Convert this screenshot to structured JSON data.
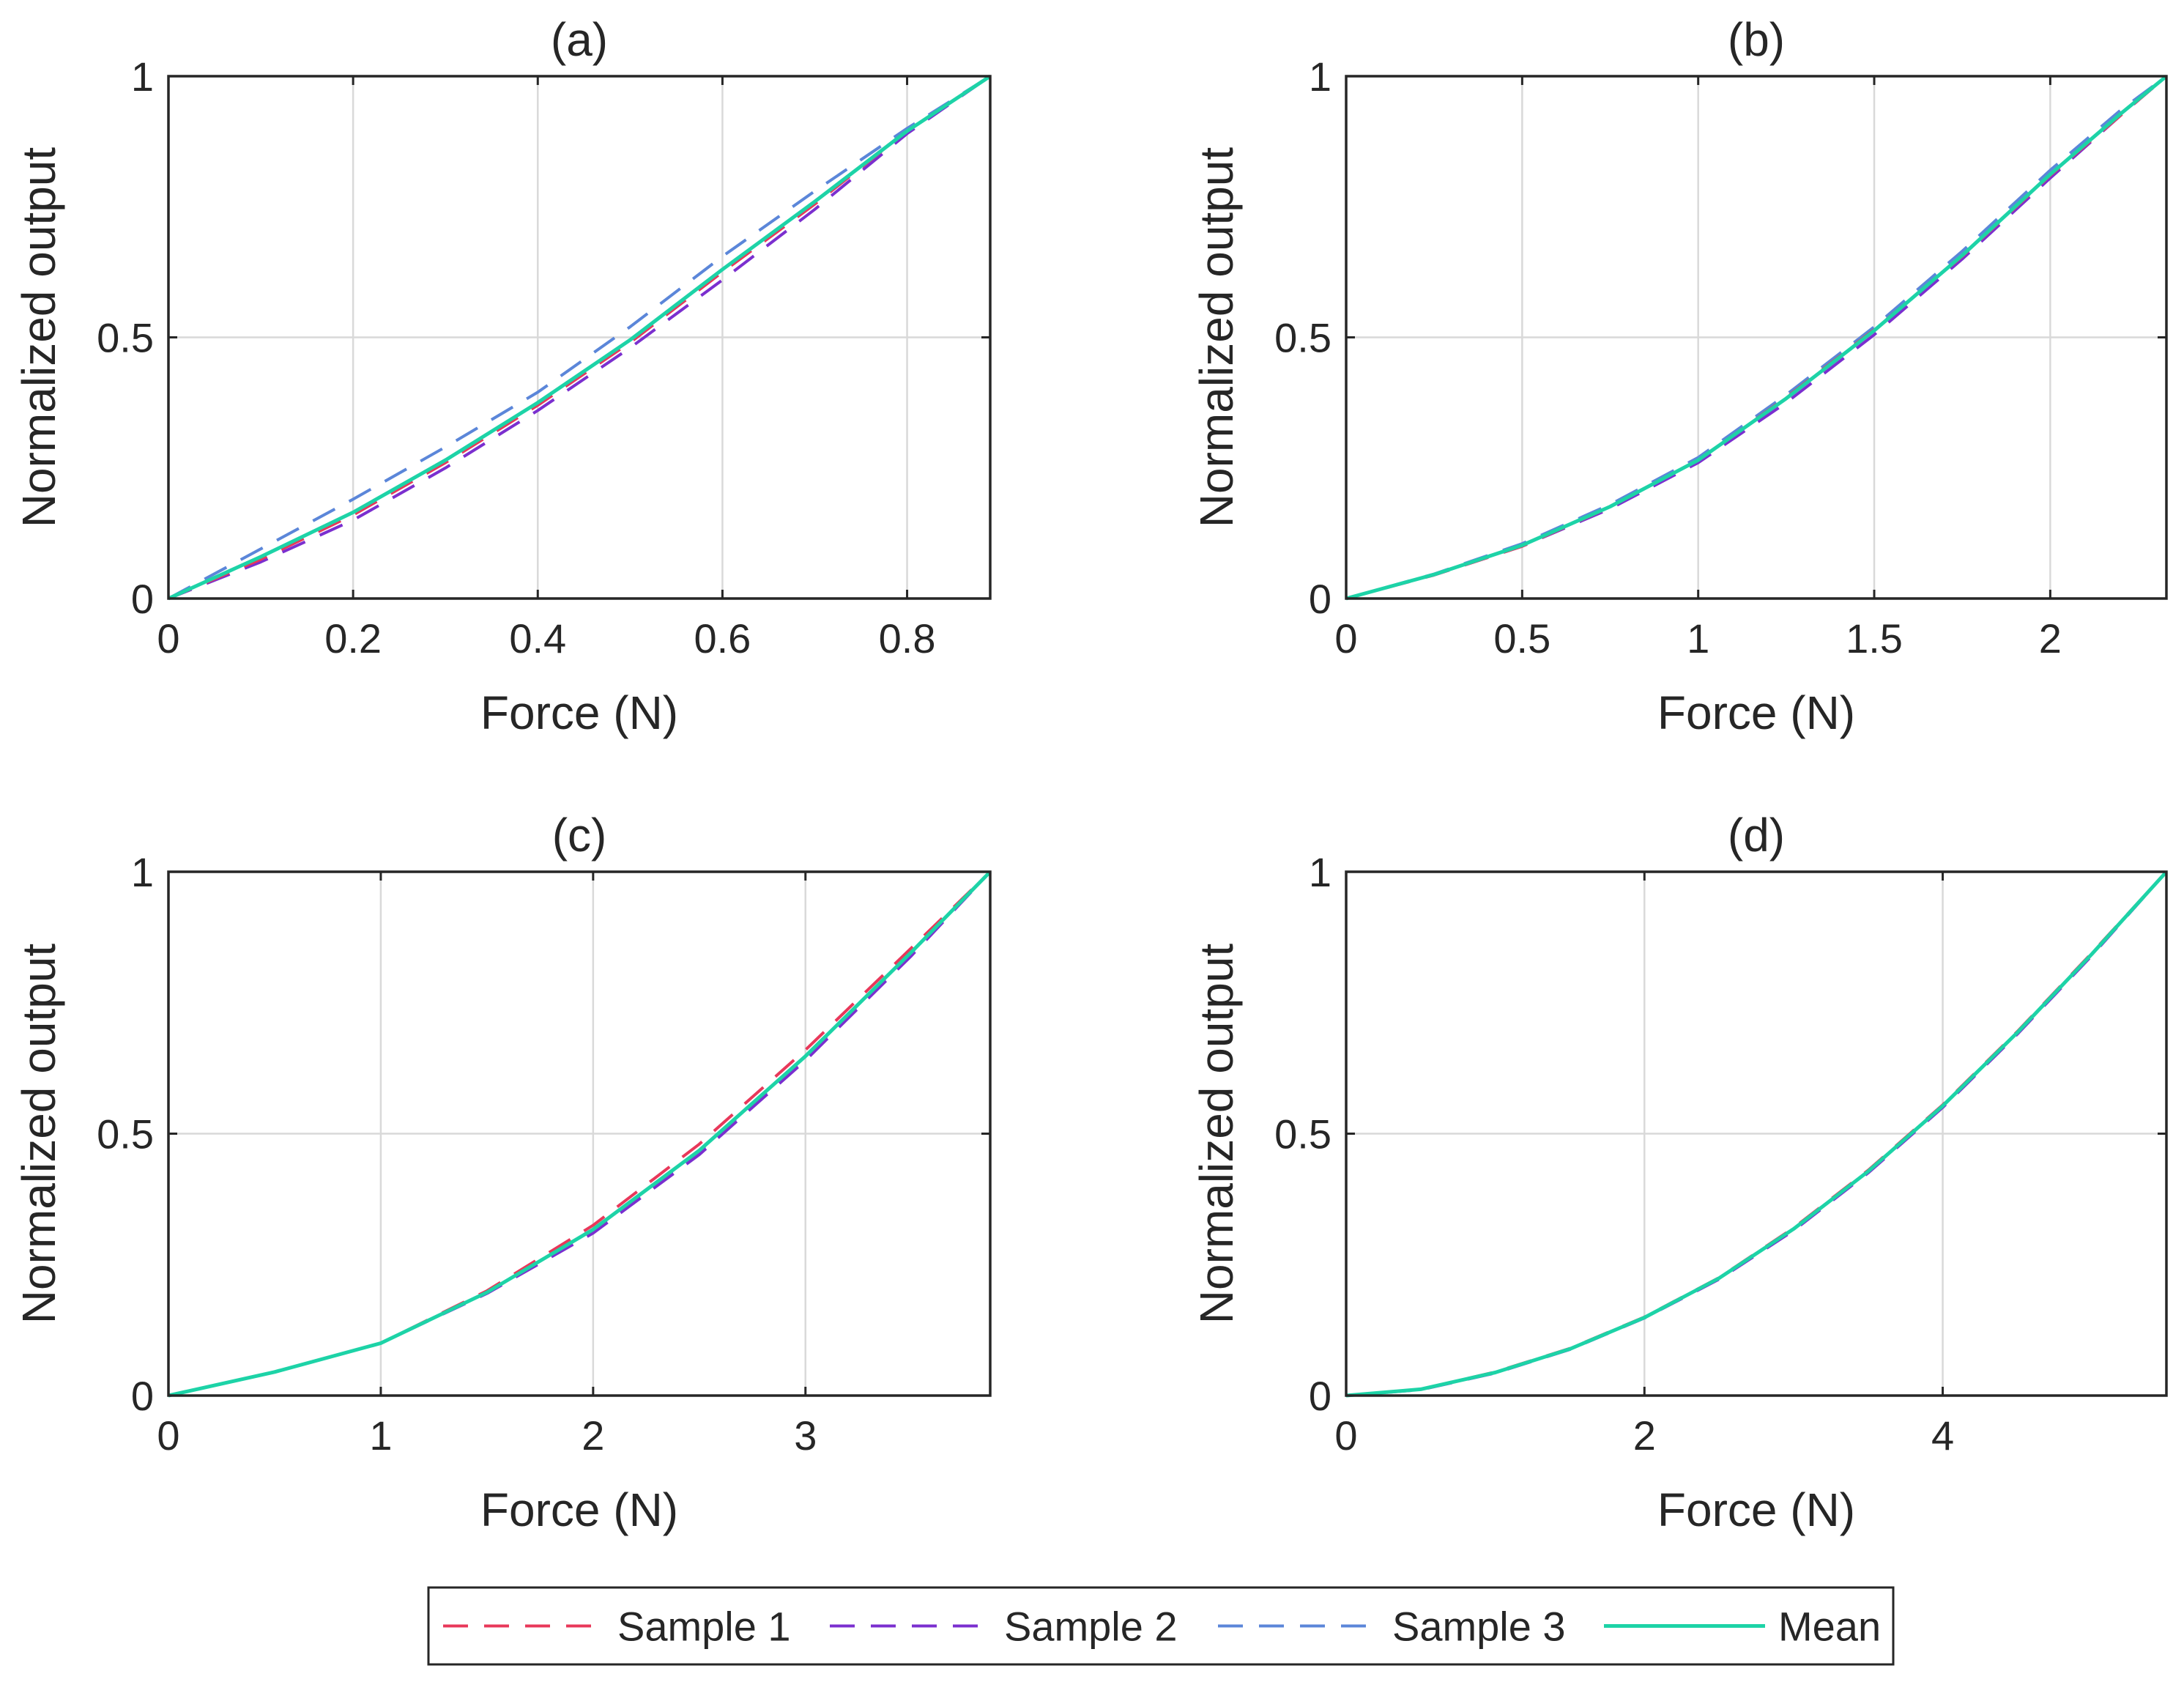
{
  "colors": {
    "sample1": "#E8385A",
    "sample2": "#7B2FCF",
    "sample3": "#5B86D9",
    "mean": "#1DD3A7",
    "axis": "#262626",
    "grid": "#D9D9D9"
  },
  "legend": {
    "entries": [
      {
        "label": "Sample 1",
        "color_key": "sample1",
        "style": "dashed"
      },
      {
        "label": "Sample 2",
        "color_key": "sample2",
        "style": "dashed"
      },
      {
        "label": "Sample 3",
        "color_key": "sample3",
        "style": "dashed"
      },
      {
        "label": "Mean",
        "color_key": "mean",
        "style": "solid"
      }
    ],
    "placement": "bottom-center"
  },
  "chart_data": [
    {
      "type": "line",
      "title": "(a)",
      "xlabel": "Force (N)",
      "ylabel": "Normalized output",
      "xlim": [
        0,
        0.89
      ],
      "ylim": [
        0,
        1
      ],
      "xticks": [
        0,
        0.2,
        0.4,
        0.6,
        0.8
      ],
      "xtick_labels": [
        "0",
        "0.2",
        "0.4",
        "0.6",
        "0.8"
      ],
      "yticks": [
        0,
        0.5,
        1
      ],
      "ytick_labels": [
        "0",
        "0.5",
        "1"
      ],
      "grid": true,
      "series": [
        {
          "name": "Sample 1",
          "x": [
            0,
            0.1,
            0.2,
            0.3,
            0.4,
            0.5,
            0.6,
            0.7,
            0.8,
            0.89
          ],
          "y": [
            0,
            0.075,
            0.16,
            0.26,
            0.37,
            0.49,
            0.625,
            0.755,
            0.895,
            1
          ]
        },
        {
          "name": "Sample 2",
          "x": [
            0,
            0.1,
            0.2,
            0.3,
            0.4,
            0.5,
            0.6,
            0.7,
            0.8,
            0.89
          ],
          "y": [
            0,
            0.07,
            0.15,
            0.25,
            0.36,
            0.48,
            0.61,
            0.745,
            0.89,
            1
          ]
        },
        {
          "name": "Sample 3",
          "x": [
            0,
            0.1,
            0.2,
            0.3,
            0.4,
            0.5,
            0.6,
            0.7,
            0.8,
            0.89
          ],
          "y": [
            0,
            0.095,
            0.19,
            0.29,
            0.395,
            0.52,
            0.655,
            0.78,
            0.9,
            1
          ]
        },
        {
          "name": "Mean",
          "x": [
            0,
            0.1,
            0.2,
            0.3,
            0.4,
            0.5,
            0.6,
            0.7,
            0.8,
            0.89
          ],
          "y": [
            0,
            0.08,
            0.165,
            0.265,
            0.375,
            0.495,
            0.63,
            0.76,
            0.895,
            1
          ]
        }
      ]
    },
    {
      "type": "line",
      "title": "(b)",
      "xlabel": "Force (N)",
      "ylabel": "Normalized output",
      "xlim": [
        0,
        2.33
      ],
      "ylim": [
        0,
        1
      ],
      "xticks": [
        0,
        0.5,
        1,
        1.5,
        2
      ],
      "xtick_labels": [
        "0",
        "0.5",
        "1",
        "1.5",
        "2"
      ],
      "yticks": [
        0,
        0.5,
        1
      ],
      "ytick_labels": [
        "0",
        "0.5",
        "1"
      ],
      "grid": true,
      "series": [
        {
          "name": "Sample 1",
          "x": [
            0,
            0.25,
            0.5,
            0.75,
            1,
            1.25,
            1.5,
            1.75,
            2,
            2.2,
            2.33
          ],
          "y": [
            0,
            0.045,
            0.1,
            0.175,
            0.265,
            0.385,
            0.515,
            0.655,
            0.81,
            0.925,
            1
          ]
        },
        {
          "name": "Sample 2",
          "x": [
            0,
            0.25,
            0.5,
            0.75,
            1,
            1.25,
            1.5,
            1.75,
            2,
            2.2,
            2.33
          ],
          "y": [
            0,
            0.045,
            0.1,
            0.172,
            0.26,
            0.375,
            0.505,
            0.65,
            0.805,
            0.925,
            1
          ]
        },
        {
          "name": "Sample 3",
          "x": [
            0,
            0.25,
            0.5,
            0.75,
            1,
            1.25,
            1.5,
            1.75,
            2,
            2.2,
            2.33
          ],
          "y": [
            0,
            0.047,
            0.105,
            0.18,
            0.27,
            0.39,
            0.52,
            0.665,
            0.82,
            0.935,
            1
          ]
        },
        {
          "name": "Mean",
          "x": [
            0,
            0.25,
            0.5,
            0.75,
            1,
            1.25,
            1.5,
            1.75,
            2,
            2.2,
            2.33
          ],
          "y": [
            0,
            0.046,
            0.102,
            0.176,
            0.265,
            0.383,
            0.513,
            0.657,
            0.812,
            0.928,
            1
          ]
        }
      ]
    },
    {
      "type": "line",
      "title": "(c)",
      "xlabel": "Force (N)",
      "ylabel": "Normalized output",
      "xlim": [
        0,
        3.87
      ],
      "ylim": [
        0,
        1
      ],
      "xticks": [
        0,
        1,
        2,
        3
      ],
      "xtick_labels": [
        "0",
        "1",
        "2",
        "3"
      ],
      "yticks": [
        0,
        0.5,
        1
      ],
      "ytick_labels": [
        "0",
        "0.5",
        "1"
      ],
      "grid": true,
      "series": [
        {
          "name": "Sample 1",
          "x": [
            0,
            0.5,
            1,
            1.5,
            2,
            2.5,
            3,
            3.5,
            3.87
          ],
          "y": [
            0,
            0.045,
            0.1,
            0.2,
            0.325,
            0.48,
            0.66,
            0.855,
            1
          ]
        },
        {
          "name": "Sample 2",
          "x": [
            0,
            0.5,
            1,
            1.5,
            2,
            2.5,
            3,
            3.5,
            3.87
          ],
          "y": [
            0,
            0.045,
            0.1,
            0.195,
            0.31,
            0.46,
            0.64,
            0.84,
            1
          ]
        },
        {
          "name": "Sample 3",
          "x": [
            0,
            0.5,
            1,
            1.5,
            2,
            2.5,
            3,
            3.5,
            3.87
          ],
          "y": [
            0,
            0.045,
            0.1,
            0.197,
            0.315,
            0.465,
            0.645,
            0.845,
            1
          ]
        },
        {
          "name": "Mean",
          "x": [
            0,
            0.5,
            1,
            1.5,
            2,
            2.5,
            3,
            3.5,
            3.87
          ],
          "y": [
            0,
            0.045,
            0.1,
            0.197,
            0.317,
            0.468,
            0.648,
            0.847,
            1
          ]
        }
      ]
    },
    {
      "type": "line",
      "title": "(d)",
      "xlabel": "Force (N)",
      "ylabel": "Normalized output",
      "xlim": [
        0,
        5.5
      ],
      "ylim": [
        0,
        1
      ],
      "xticks": [
        0,
        2,
        4
      ],
      "xtick_labels": [
        "0",
        "2",
        "4"
      ],
      "yticks": [
        0,
        0.5,
        1
      ],
      "ytick_labels": [
        "0",
        "0.5",
        "1"
      ],
      "grid": true,
      "series": [
        {
          "name": "Sample 1",
          "x": [
            0,
            0.5,
            1,
            1.5,
            2,
            2.5,
            3,
            3.5,
            4,
            4.5,
            5,
            5.5
          ],
          "y": [
            0,
            0.012,
            0.045,
            0.09,
            0.15,
            0.225,
            0.32,
            0.43,
            0.555,
            0.695,
            0.845,
            1
          ]
        },
        {
          "name": "Sample 2",
          "x": [
            0,
            0.5,
            1,
            1.5,
            2,
            2.5,
            3,
            3.5,
            4,
            4.5,
            5,
            5.5
          ],
          "y": [
            0,
            0.011,
            0.043,
            0.088,
            0.148,
            0.222,
            0.315,
            0.425,
            0.55,
            0.69,
            0.84,
            1
          ]
        },
        {
          "name": "Sample 3",
          "x": [
            0,
            0.5,
            1,
            1.5,
            2,
            2.5,
            3,
            3.5,
            4,
            4.5,
            5,
            5.5
          ],
          "y": [
            0,
            0.012,
            0.044,
            0.089,
            0.149,
            0.224,
            0.318,
            0.428,
            0.553,
            0.693,
            0.843,
            1
          ]
        },
        {
          "name": "Mean",
          "x": [
            0,
            0.5,
            1,
            1.5,
            2,
            2.5,
            3,
            3.5,
            4,
            4.5,
            5,
            5.5
          ],
          "y": [
            0,
            0.012,
            0.044,
            0.089,
            0.149,
            0.224,
            0.318,
            0.428,
            0.553,
            0.693,
            0.843,
            1
          ]
        }
      ]
    }
  ]
}
